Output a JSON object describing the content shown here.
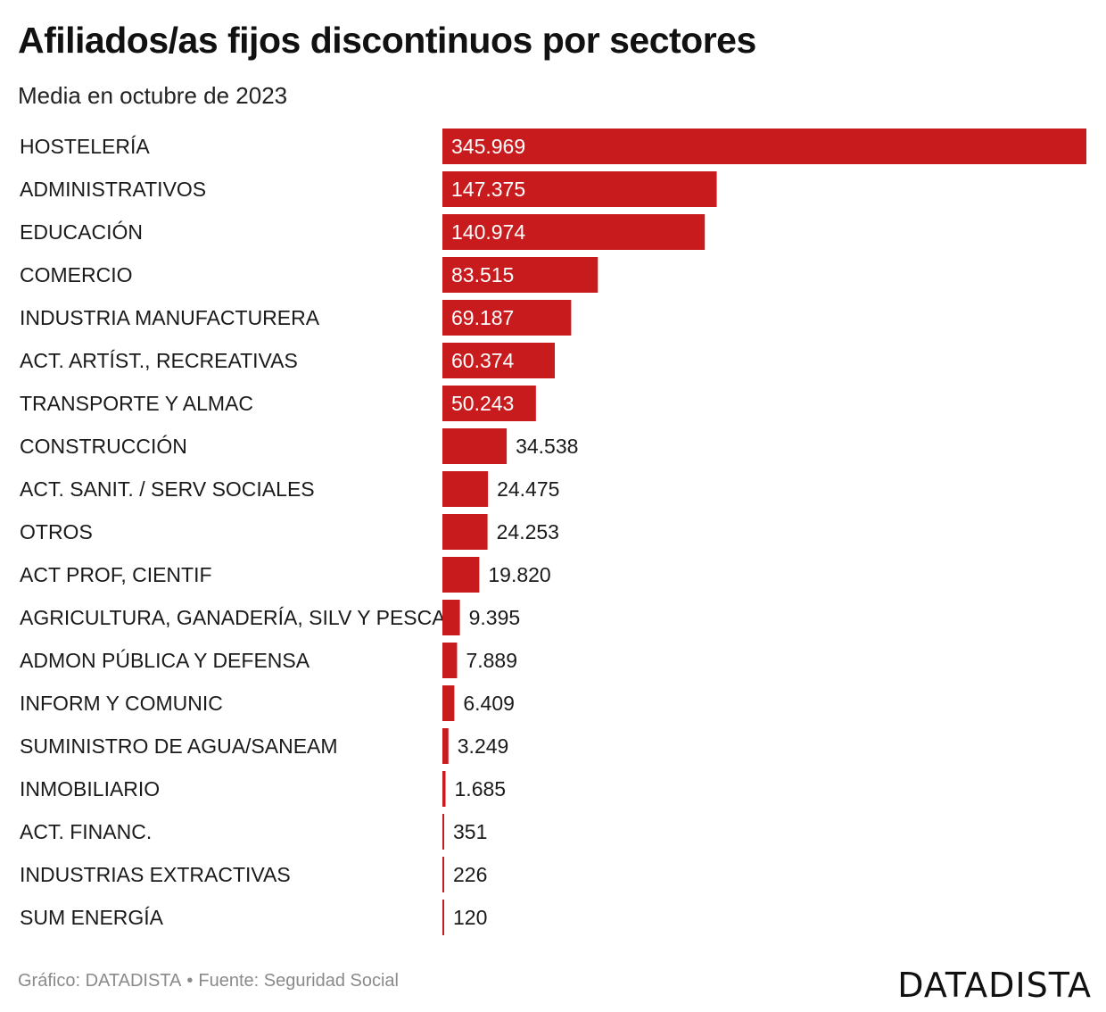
{
  "header": {
    "title": "Afiliados/as fijos discontinuos por sectores",
    "subtitle": "Media en octubre de 2023"
  },
  "footer": {
    "credit": "Gráfico: DATADISTA",
    "separator": "•",
    "source": "Fuente: Seguridad Social",
    "brand": "DATADISTA"
  },
  "colors": {
    "bar": "#c81b1e",
    "label_inside": "#ffffff",
    "label_outside": "#1a1a1a"
  },
  "chart_data": {
    "type": "bar",
    "orientation": "horizontal",
    "title": "Afiliados/as fijos discontinuos por sectores",
    "subtitle": "Media en octubre de 2023",
    "xlim": [
      0,
      345969
    ],
    "grid": false,
    "legend": "none",
    "categories": [
      "HOSTELERÍA",
      "ADMINISTRATIVOS",
      "EDUCACIÓN",
      "COMERCIO",
      "INDUSTRIA MANUFACTURERA",
      "ACT. ARTÍST., RECREATIVAS",
      "TRANSPORTE Y ALMAC",
      "CONSTRUCCIÓN",
      "ACT. SANIT. / SERV SOCIALES",
      "OTROS",
      "ACT PROF, CIENTIF",
      "AGRICULTURA, GANADERÍA, SILV Y PESCA",
      "ADMON PÚBLICA Y DEFENSA",
      "INFORM Y COMUNIC",
      "SUMINISTRO DE AGUA/SANEAM",
      "INMOBILIARIO",
      "ACT. FINANC.",
      "INDUSTRIAS EXTRACTIVAS",
      "SUM ENERGÍA"
    ],
    "values": [
      345969,
      147375,
      140974,
      83515,
      69187,
      60374,
      50243,
      34538,
      24475,
      24253,
      19820,
      9395,
      7889,
      6409,
      3249,
      1685,
      351,
      226,
      120
    ],
    "value_labels": [
      "345.969",
      "147.375",
      "140.974",
      "83.515",
      "69.187",
      "60.374",
      "50.243",
      "34.538",
      "24.475",
      "24.253",
      "19.820",
      "9.395",
      "7.889",
      "6.409",
      "3.249",
      "1.685",
      "351",
      "226",
      "120"
    ]
  }
}
